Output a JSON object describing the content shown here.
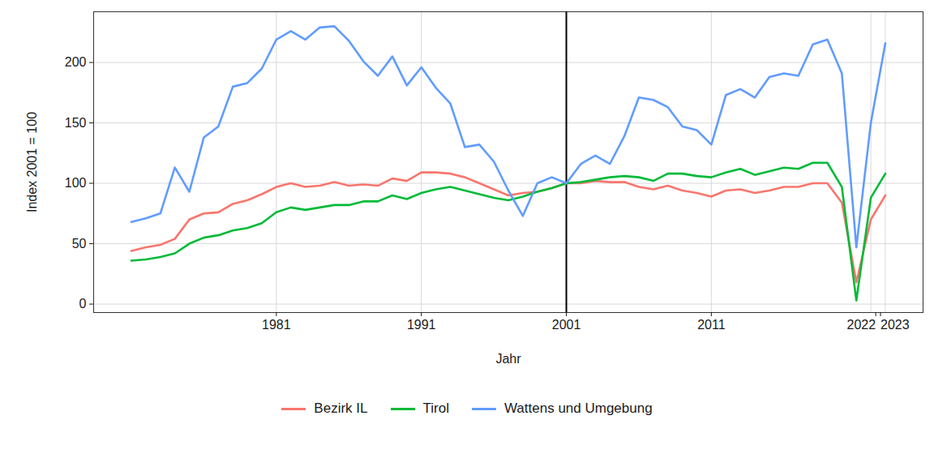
{
  "chart_data": {
    "type": "line",
    "x_label": "Jahr",
    "y_label": "Index 2001 = 100",
    "x": [
      1971,
      1972,
      1973,
      1974,
      1975,
      1976,
      1977,
      1978,
      1979,
      1980,
      1981,
      1982,
      1983,
      1984,
      1985,
      1986,
      1987,
      1988,
      1989,
      1990,
      1991,
      1992,
      1993,
      1994,
      1995,
      1996,
      1997,
      1998,
      1999,
      2000,
      2001,
      2002,
      2003,
      2004,
      2005,
      2006,
      2007,
      2008,
      2009,
      2010,
      2011,
      2012,
      2013,
      2014,
      2015,
      2016,
      2017,
      2018,
      2019,
      2020,
      2021,
      2022,
      2023
    ],
    "series": [
      {
        "name": "Bezirk IL",
        "color": "#F8766D",
        "values": [
          44,
          47,
          49,
          54,
          70,
          75,
          76,
          83,
          86,
          91,
          97,
          100,
          97,
          98,
          101,
          98,
          99,
          98,
          104,
          102,
          109,
          109,
          108,
          105,
          100,
          95,
          90,
          92,
          93,
          96,
          100,
          100,
          102,
          101,
          101,
          97,
          95,
          98,
          94,
          92,
          89,
          94,
          95,
          92,
          94,
          97,
          97,
          100,
          100,
          84,
          18,
          70,
          90
        ]
      },
      {
        "name": "Tirol",
        "color": "#00BA38",
        "values": [
          36,
          37,
          39,
          42,
          50,
          55,
          57,
          61,
          63,
          67,
          76,
          80,
          78,
          80,
          82,
          82,
          85,
          85,
          90,
          87,
          92,
          95,
          97,
          94,
          91,
          88,
          86,
          89,
          93,
          96,
          100,
          101,
          103,
          105,
          106,
          105,
          102,
          108,
          108,
          106,
          105,
          109,
          112,
          107,
          110,
          113,
          112,
          117,
          117,
          97,
          3,
          88,
          108
        ]
      },
      {
        "name": "Wattens und Umgebung",
        "color": "#619CFF",
        "values": [
          68,
          71,
          75,
          113,
          93,
          138,
          147,
          180,
          183,
          195,
          219,
          226,
          219,
          229,
          230,
          218,
          201,
          189,
          205,
          181,
          196,
          179,
          166,
          130,
          132,
          118,
          94,
          73,
          100,
          105,
          100,
          116,
          123,
          116,
          139,
          171,
          169,
          163,
          147,
          144,
          132,
          173,
          178,
          171,
          188,
          191,
          189,
          215,
          219,
          191,
          47,
          150,
          216
        ]
      }
    ],
    "vline": 2001,
    "xlim": [
      1968.4,
      2025.6
    ],
    "xticks": [
      1981,
      1991,
      2001,
      2011,
      2022,
      2023
    ],
    "ylim": [
      -7,
      242
    ],
    "yticks": [
      0,
      50,
      100,
      150,
      200
    ],
    "grid": true,
    "legend": "bottom"
  }
}
